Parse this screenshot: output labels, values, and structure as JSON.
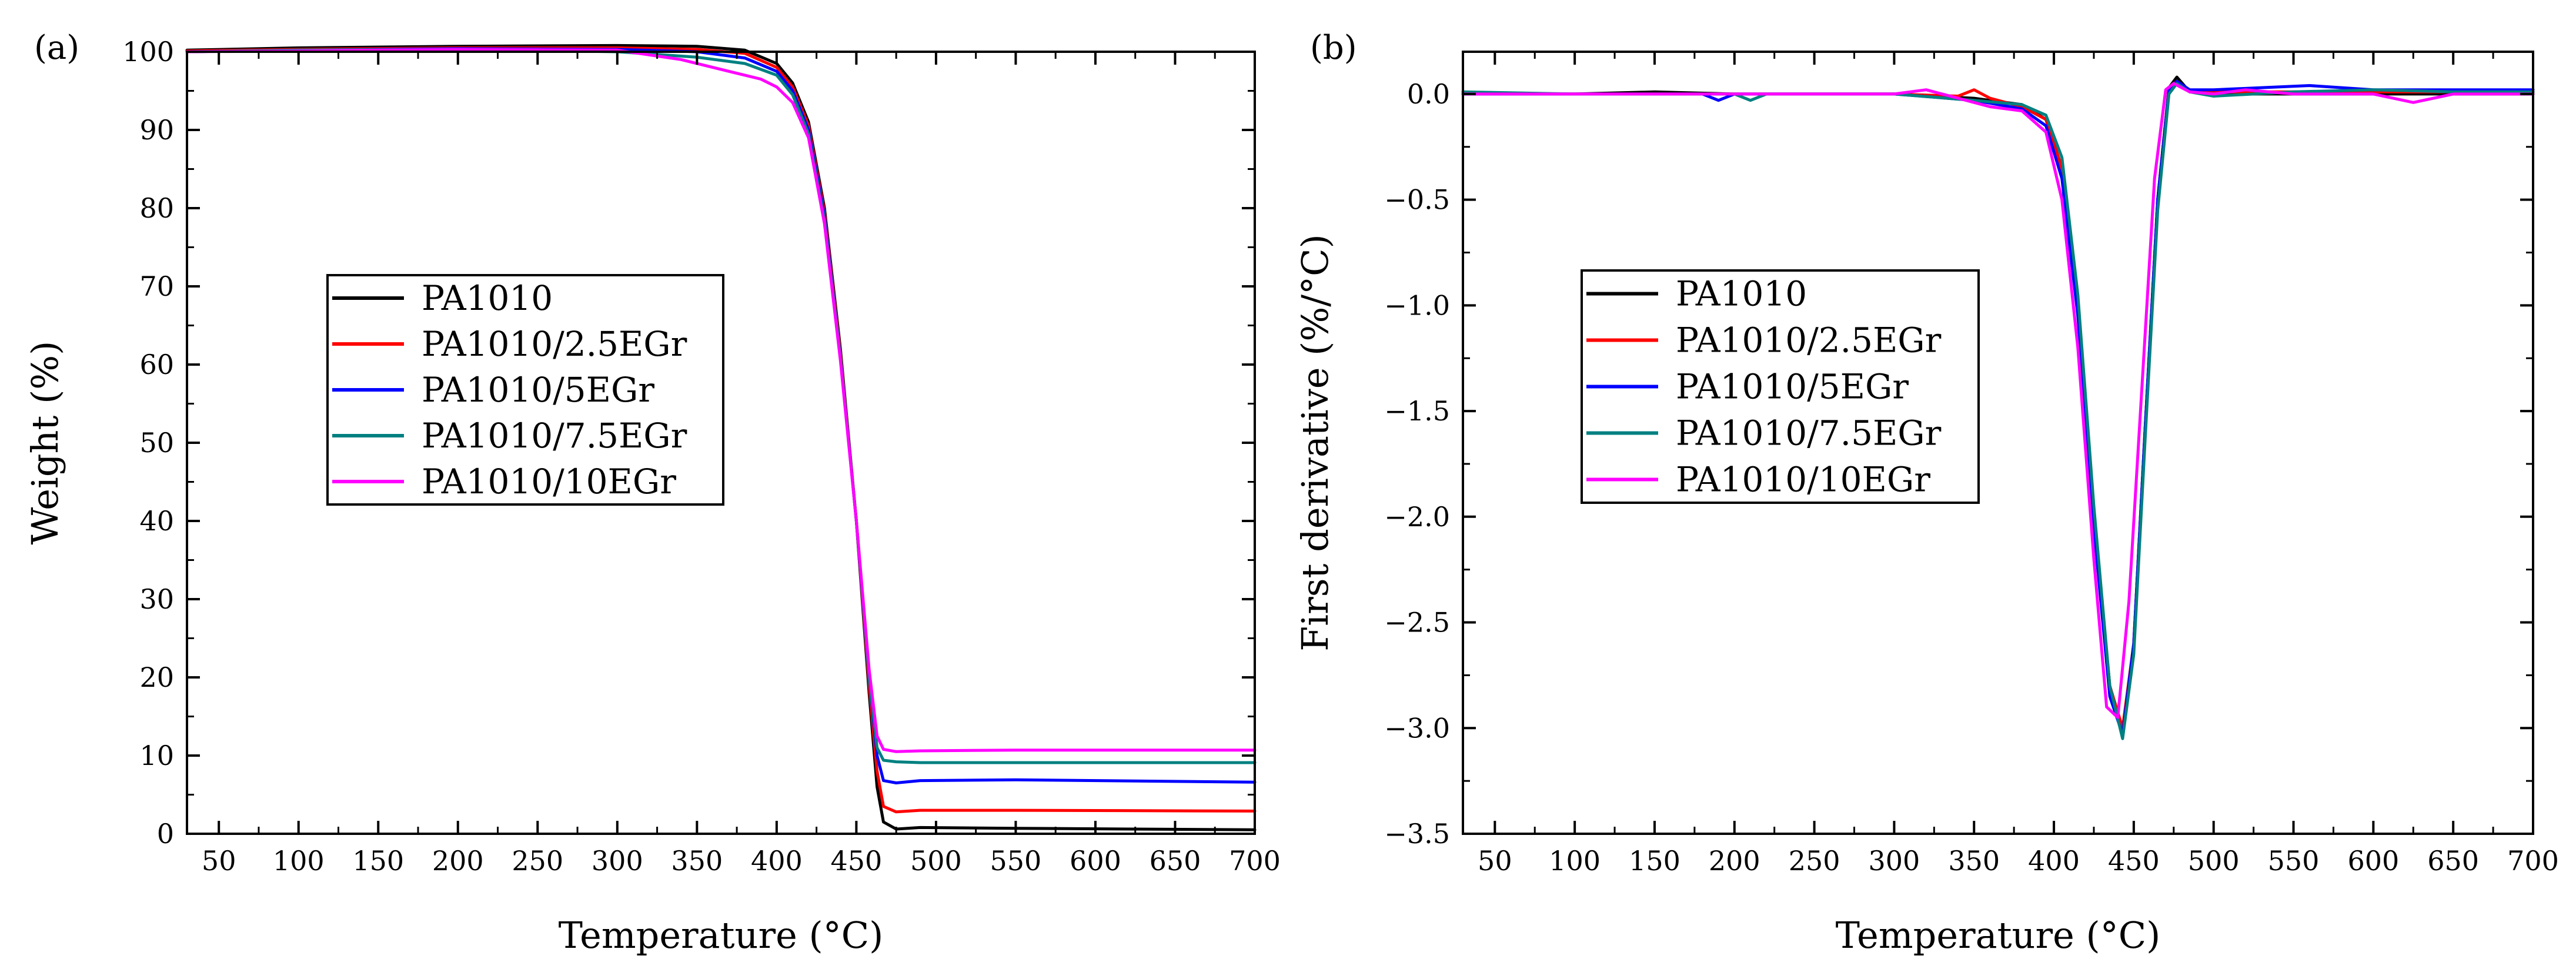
{
  "chart_data": [
    {
      "type": "line",
      "panel_label": "(a)",
      "xlabel": "Temperature (°C)",
      "ylabel": "Weight (%)",
      "xlim": [
        30,
        700
      ],
      "ylim": [
        0,
        100
      ],
      "xticks": [
        50,
        100,
        150,
        200,
        250,
        300,
        350,
        400,
        450,
        500,
        550,
        600,
        650,
        700
      ],
      "xtick_labels": [
        "50",
        "100",
        "150",
        "200",
        "250",
        "300",
        "350",
        "400",
        "450",
        "500",
        "550",
        "600",
        "650",
        "700"
      ],
      "yticks": [
        0,
        10,
        20,
        30,
        40,
        50,
        60,
        70,
        80,
        90,
        100
      ],
      "ytick_labels": [
        "0",
        "10",
        "20",
        "30",
        "40",
        "50",
        "60",
        "70",
        "80",
        "90",
        "100"
      ],
      "legend_position": "center-left",
      "series": [
        {
          "name": "PA1010",
          "color": "#000000",
          "x": [
            30,
            100,
            200,
            300,
            350,
            380,
            400,
            410,
            420,
            430,
            440,
            450,
            458,
            463,
            467,
            475,
            490,
            550,
            700
          ],
          "y": [
            100.2,
            100.5,
            100.7,
            100.8,
            100.7,
            100.2,
            98.5,
            96,
            91,
            80,
            62,
            40,
            18,
            6,
            1.5,
            0.6,
            0.8,
            0.7,
            0.5
          ]
        },
        {
          "name": "PA1010/2.5EGr",
          "color": "#ff0000",
          "x": [
            30,
            100,
            200,
            300,
            350,
            380,
            400,
            410,
            420,
            430,
            440,
            450,
            458,
            463,
            467,
            475,
            490,
            550,
            700
          ],
          "y": [
            100.1,
            100.3,
            100.5,
            100.5,
            100.3,
            99.8,
            98,
            95.5,
            90.5,
            79.5,
            61.5,
            40,
            19,
            8,
            3.5,
            2.8,
            3,
            3,
            2.9
          ]
        },
        {
          "name": "PA1010/5EGr",
          "color": "#0000ff",
          "x": [
            30,
            100,
            200,
            300,
            350,
            380,
            400,
            410,
            420,
            430,
            440,
            450,
            458,
            463,
            467,
            475,
            490,
            550,
            700
          ],
          "y": [
            100,
            100.2,
            100.4,
            100.3,
            100,
            99.2,
            97.5,
            95,
            90,
            79,
            61,
            40,
            20,
            10,
            6.8,
            6.5,
            6.8,
            6.9,
            6.6
          ]
        },
        {
          "name": "PA1010/7.5EGr",
          "color": "#008080",
          "x": [
            30,
            100,
            200,
            300,
            350,
            380,
            400,
            410,
            420,
            430,
            440,
            450,
            458,
            463,
            467,
            475,
            490,
            550,
            700
          ],
          "y": [
            100,
            100.2,
            100.3,
            100,
            99.3,
            98.5,
            97,
            94.5,
            89.5,
            78.5,
            61,
            40,
            20,
            11,
            9.4,
            9.2,
            9.1,
            9.1,
            9.1
          ]
        },
        {
          "name": "PA1010/10EGr",
          "color": "#ff00ff",
          "x": [
            30,
            100,
            200,
            300,
            340,
            370,
            390,
            400,
            410,
            420,
            430,
            440,
            450,
            458,
            463,
            467,
            475,
            490,
            550,
            700
          ],
          "y": [
            100,
            100.1,
            100.3,
            100.2,
            99,
            97.5,
            96.5,
            95.5,
            93.5,
            89,
            78,
            60.5,
            40,
            21,
            12.5,
            10.8,
            10.5,
            10.6,
            10.7,
            10.7
          ]
        }
      ]
    },
    {
      "type": "line",
      "panel_label": "(b)",
      "xlabel": "Temperature (°C)",
      "ylabel": "First derivative (%/°C)",
      "xlim": [
        30,
        700
      ],
      "ylim": [
        -3.5,
        0.2
      ],
      "xticks": [
        50,
        100,
        150,
        200,
        250,
        300,
        350,
        400,
        450,
        500,
        550,
        600,
        650,
        700
      ],
      "xtick_labels": [
        "50",
        "100",
        "150",
        "200",
        "250",
        "300",
        "350",
        "400",
        "450",
        "500",
        "550",
        "600",
        "650",
        "700"
      ],
      "yticks": [
        0.0,
        -0.5,
        -1.0,
        -1.5,
        -2.0,
        -2.5,
        -3.0,
        -3.5
      ],
      "ytick_labels": [
        "0.0",
        "−0.5",
        "−1.0",
        "−1.5",
        "−2.0",
        "−2.5",
        "−3.0",
        "−3.5"
      ],
      "legend_position": "center-left",
      "series": [
        {
          "name": "PA1010",
          "color": "#000000",
          "x": [
            30,
            100,
            150,
            200,
            250,
            300,
            350,
            380,
            395,
            405,
            415,
            425,
            435,
            443,
            450,
            457,
            465,
            472,
            477,
            485,
            500,
            550,
            600,
            650,
            700
          ],
          "y": [
            0,
            0,
            0.01,
            0,
            0,
            0,
            -0.02,
            -0.05,
            -0.12,
            -0.35,
            -1.0,
            -2.0,
            -2.8,
            -3.02,
            -2.6,
            -1.6,
            -0.5,
            0.03,
            0.08,
            0.01,
            0,
            0,
            0,
            0,
            0
          ]
        },
        {
          "name": "PA1010/2.5EGr",
          "color": "#ff0000",
          "x": [
            30,
            100,
            200,
            300,
            340,
            350,
            360,
            380,
            395,
            405,
            415,
            425,
            435,
            443,
            450,
            457,
            465,
            472,
            477,
            485,
            500,
            550,
            600,
            650,
            700
          ],
          "y": [
            0,
            0,
            0,
            0,
            -0.01,
            0.02,
            -0.02,
            -0.06,
            -0.12,
            -0.35,
            -1.0,
            -2.0,
            -2.8,
            -3.0,
            -2.6,
            -1.6,
            -0.5,
            0.03,
            0.06,
            0.01,
            0.01,
            0.01,
            0.01,
            0.01,
            0.01
          ]
        },
        {
          "name": "PA1010/5EGr",
          "color": "#0000ff",
          "x": [
            30,
            100,
            180,
            190,
            200,
            250,
            300,
            350,
            380,
            395,
            405,
            415,
            425,
            435,
            443,
            450,
            457,
            465,
            472,
            477,
            485,
            500,
            560,
            600,
            650,
            700
          ],
          "y": [
            0,
            0,
            0,
            -0.03,
            0,
            0,
            0,
            -0.03,
            -0.07,
            -0.15,
            -0.4,
            -1.05,
            -2.05,
            -2.85,
            -3.03,
            -2.6,
            -1.6,
            -0.5,
            0.02,
            0.06,
            0.02,
            0.02,
            0.04,
            0.02,
            0.02,
            0.02
          ]
        },
        {
          "name": "PA1010/7.5EGr",
          "color": "#008080",
          "x": [
            30,
            100,
            200,
            210,
            220,
            250,
            300,
            350,
            380,
            395,
            405,
            415,
            425,
            435,
            443,
            450,
            457,
            465,
            472,
            477,
            485,
            500,
            550,
            600,
            650,
            700
          ],
          "y": [
            0.01,
            0,
            0,
            -0.03,
            0,
            0,
            0,
            -0.03,
            -0.05,
            -0.1,
            -0.3,
            -0.95,
            -1.95,
            -2.8,
            -3.05,
            -2.65,
            -1.65,
            -0.55,
            0.0,
            0.05,
            0.01,
            -0.01,
            0.01,
            0.02,
            0.01,
            0.01
          ]
        },
        {
          "name": "PA1010/10EGr",
          "color": "#ff00ff",
          "x": [
            30,
            100,
            200,
            250,
            300,
            320,
            340,
            360,
            380,
            395,
            405,
            415,
            425,
            433,
            440,
            447,
            455,
            463,
            470,
            475,
            485,
            500,
            520,
            550,
            600,
            625,
            650,
            700
          ],
          "y": [
            0,
            0,
            0,
            0,
            0,
            0.02,
            -0.02,
            -0.06,
            -0.08,
            -0.18,
            -0.5,
            -1.2,
            -2.2,
            -2.9,
            -2.95,
            -2.4,
            -1.4,
            -0.4,
            0.02,
            0.05,
            0.01,
            0,
            0.02,
            0,
            0,
            -0.04,
            0,
            0
          ]
        }
      ]
    }
  ]
}
